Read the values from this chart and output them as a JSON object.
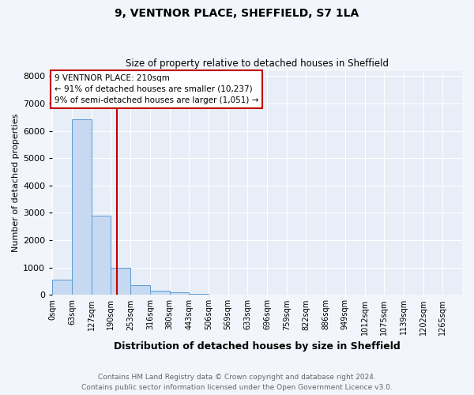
{
  "title": "9, VENTNOR PLACE, SHEFFIELD, S7 1LA",
  "subtitle": "Size of property relative to detached houses in Sheffield",
  "xlabel": "Distribution of detached houses by size in Sheffield",
  "ylabel": "Number of detached properties",
  "footnote1": "Contains HM Land Registry data © Crown copyright and database right 2024.",
  "footnote2": "Contains public sector information licensed under the Open Government Licence v3.0.",
  "bar_labels": [
    "0sqm",
    "63sqm",
    "127sqm",
    "190sqm",
    "253sqm",
    "316sqm",
    "380sqm",
    "443sqm",
    "506sqm",
    "569sqm",
    "633sqm",
    "696sqm",
    "759sqm",
    "822sqm",
    "886sqm",
    "949sqm",
    "1012sqm",
    "1075sqm",
    "1139sqm",
    "1202sqm",
    "1265sqm"
  ],
  "bar_heights": [
    560,
    6430,
    2900,
    1000,
    370,
    150,
    90,
    50,
    0,
    0,
    0,
    0,
    0,
    0,
    0,
    0,
    0,
    0,
    0,
    0,
    0
  ],
  "bar_color": "#c6d9f0",
  "bar_edge_color": "#5b9bd5",
  "vline_color": "#c00000",
  "annotation_line1": "9 VENTNOR PLACE: 210sqm",
  "annotation_line2": "← 91% of detached houses are smaller (10,237)",
  "annotation_line3": "9% of semi-detached houses are larger (1,051) →",
  "annotation_box_edge_color": "#c00000",
  "ylim": [
    0,
    8200
  ],
  "yticks": [
    0,
    1000,
    2000,
    3000,
    4000,
    5000,
    6000,
    7000,
    8000
  ],
  "fig_bg_color": "#f2f5fb",
  "plot_bg_color": "#e8eef8",
  "grid_color": "#ffffff",
  "footnote_color": "#666666",
  "title_fontsize": 10,
  "subtitle_fontsize": 8.5,
  "ylabel_fontsize": 8,
  "xlabel_fontsize": 9,
  "tick_fontsize": 7,
  "ytick_fontsize": 8,
  "footnote_fontsize": 6.5
}
